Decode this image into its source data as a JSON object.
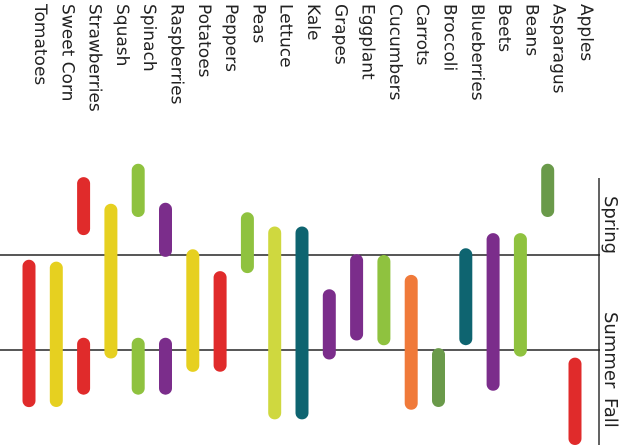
{
  "chart_data": {
    "type": "bar",
    "orientation": "rotated 90° clockwise",
    "seasons": [
      "Spring",
      "Summer",
      "Fall"
    ],
    "season_range": [
      0,
      3
    ],
    "categories": [
      "Apples",
      "Asparagus",
      "Beans",
      "Beets",
      "Blueberries",
      "Broccoli",
      "Carrots",
      "Cucumbers",
      "Eggplant",
      "Grapes",
      "Kale",
      "Lettuce",
      "Peas",
      "Peppers",
      "Potatoes",
      "Raspberries",
      "Spinach",
      "Squash",
      "Strawberries",
      "Sweet Corn",
      "Tomatoes"
    ],
    "bars": [
      {
        "category": "Apples",
        "start": 2.08,
        "end": 3.0,
        "color": "#e02b2b"
      },
      {
        "category": "Asparagus",
        "start": 0.04,
        "end": 0.6,
        "color": "#6a9a4a"
      },
      {
        "category": "Beans",
        "start": 0.77,
        "end": 2.07,
        "color": "#8fc23f"
      },
      {
        "category": "Beets",
        "start": 0.77,
        "end": 2.43,
        "color": "#7b2d8b"
      },
      {
        "category": "Blueberries",
        "start": 0.93,
        "end": 1.95,
        "color": "#0e6470"
      },
      {
        "category": "Broccoli",
        "start": 1.98,
        "end": 2.6,
        "color": "#6a9a4a"
      },
      {
        "category": "Carrots",
        "start": 1.21,
        "end": 2.63,
        "color": "#f07a3a"
      },
      {
        "category": "Cucumbers",
        "start": 1.0,
        "end": 1.95,
        "color": "#8fc23f"
      },
      {
        "category": "Eggplant",
        "start": 0.99,
        "end": 1.9,
        "color": "#7b2d8b"
      },
      {
        "category": "Grapes",
        "start": 1.36,
        "end": 2.1,
        "color": "#7b2d8b"
      },
      {
        "category": "Kale",
        "start": 0.7,
        "end": 2.73,
        "color": "#0e6470"
      },
      {
        "category": "Lettuce",
        "start": 0.7,
        "end": 2.73,
        "color": "#cfd83f"
      },
      {
        "category": "Peas",
        "start": 0.55,
        "end": 1.19,
        "color": "#8fc23f"
      },
      {
        "category": "Peppers",
        "start": 1.17,
        "end": 2.23,
        "color": "#e02b2b"
      },
      {
        "category": "Potatoes",
        "start": 0.94,
        "end": 2.23,
        "color": "#e6d020"
      },
      {
        "category": "Raspberries",
        "start": 0.45,
        "end": 1.02,
        "color": "#7b2d8b"
      },
      {
        "category": "Raspberries",
        "start": 1.87,
        "end": 2.47,
        "color": "#7b2d8b"
      },
      {
        "category": "Spinach",
        "start": 0.04,
        "end": 0.6,
        "color": "#8fc23f"
      },
      {
        "category": "Spinach",
        "start": 1.87,
        "end": 2.47,
        "color": "#8fc23f"
      },
      {
        "category": "Squash",
        "start": 0.46,
        "end": 2.09,
        "color": "#e6d020"
      },
      {
        "category": "Strawberries",
        "start": 0.18,
        "end": 0.79,
        "color": "#e02b2b"
      },
      {
        "category": "Strawberries",
        "start": 1.87,
        "end": 2.47,
        "color": "#e02b2b"
      },
      {
        "category": "Sweet Corn",
        "start": 1.07,
        "end": 2.6,
        "color": "#e6d020"
      },
      {
        "category": "Tomatoes",
        "start": 1.05,
        "end": 2.6,
        "color": "#e02b2b"
      }
    ],
    "gridlines_at": [
      1,
      2
    ],
    "legend": "none"
  }
}
